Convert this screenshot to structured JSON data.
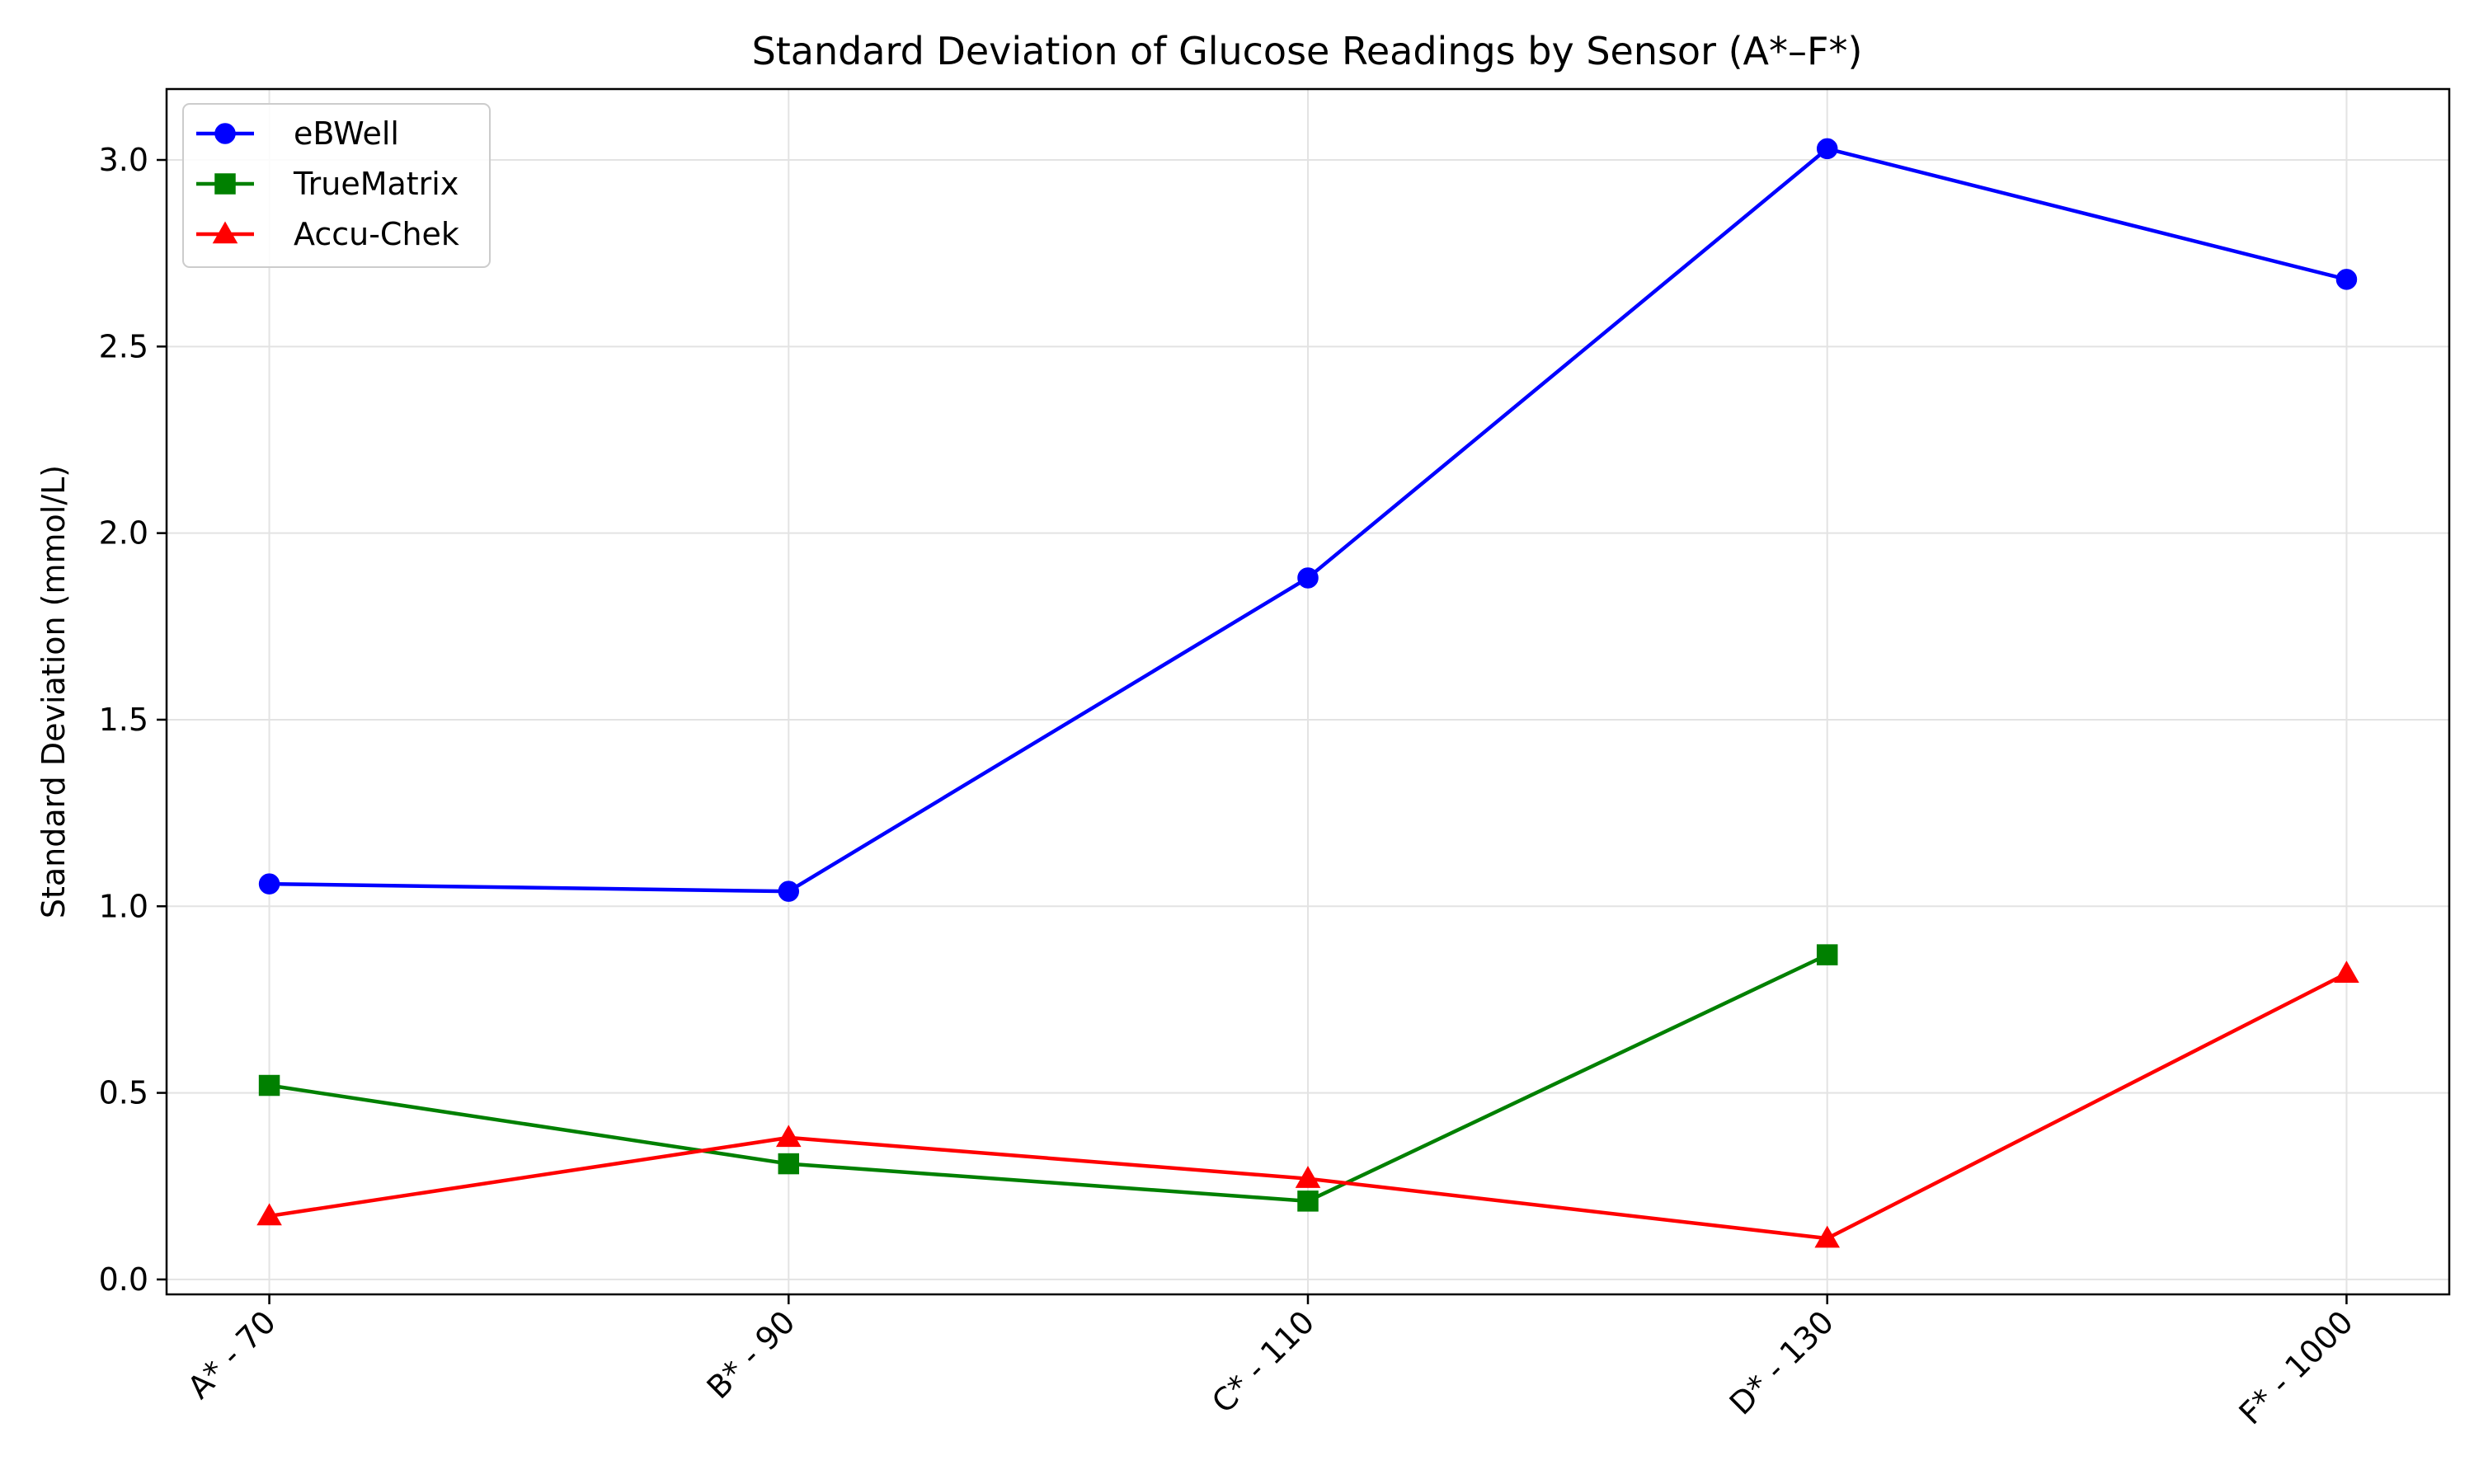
{
  "chart_data": {
    "type": "line",
    "title": "Standard Deviation of Glucose Readings by Sensor (A*–F*)",
    "xlabel": "",
    "ylabel": "Standard Deviation (mmol/L)",
    "categories": [
      "A* - 70",
      "B* - 90",
      "C* - 110",
      "D* - 130",
      "F* - 1000"
    ],
    "ylim": [
      -0.04,
      3.19
    ],
    "yticks": [
      0.0,
      0.5,
      1.0,
      1.5,
      2.0,
      2.5,
      3.0
    ],
    "ytick_labels": [
      "0.0",
      "0.5",
      "1.0",
      "1.5",
      "2.0",
      "2.5",
      "3.0"
    ],
    "grid": true,
    "legend_position": "top-left",
    "series": [
      {
        "name": "eBWell",
        "color": "#0000ff",
        "marker": "circle",
        "values": [
          1.06,
          1.04,
          1.88,
          3.03,
          2.68
        ]
      },
      {
        "name": "TrueMatrix",
        "color": "#008000",
        "marker": "square",
        "values": [
          0.52,
          0.31,
          0.21,
          0.87,
          null
        ]
      },
      {
        "name": "Accu-Chek",
        "color": "#ff0000",
        "marker": "triangle",
        "values": [
          0.17,
          0.38,
          0.27,
          0.11,
          0.82
        ]
      }
    ]
  }
}
